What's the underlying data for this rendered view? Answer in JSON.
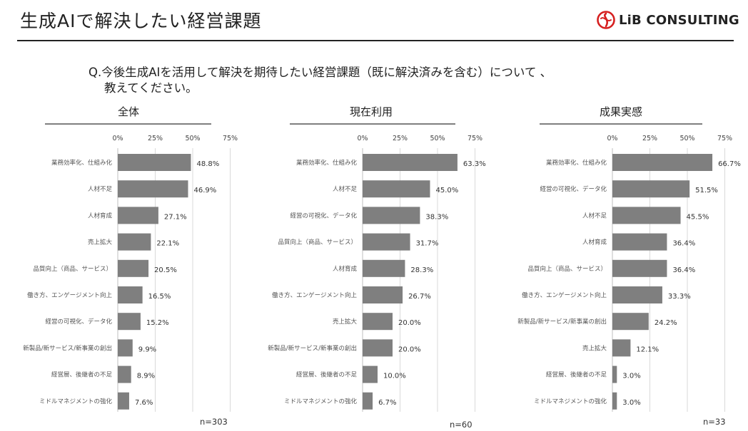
{
  "page": {
    "title": "生成AIで解決したい経営課題"
  },
  "logo": {
    "text": "LiB CONSULTING",
    "brand_color": "#d62020"
  },
  "question": {
    "line1": "Q.今後生成AIを活用して解決を期待したい経営課題（既に解決済みを含む）について 、",
    "line2": "教えてください。"
  },
  "colors": {
    "bar": "#7f7f7f",
    "grid": "#d9d9d9",
    "rule": "#222222"
  },
  "chart_data": [
    {
      "type": "bar",
      "orientation": "horizontal",
      "title": "全体",
      "xlim": [
        0,
        75
      ],
      "ticks": [
        "0%",
        "25%",
        "50%",
        "75%"
      ],
      "categories": [
        "業務効率化、仕組み化",
        "人材不足",
        "人材育成",
        "売上拡大",
        "品質向上（商品、サービス）",
        "働き方、エンゲージメント向上",
        "経営の可視化、データ化",
        "新製品/新サービス/新事業の創出",
        "経営層、後継者の不足",
        "ミドルマネジメントの強化"
      ],
      "values": [
        48.8,
        46.9,
        27.1,
        22.1,
        20.5,
        16.5,
        15.2,
        9.9,
        8.9,
        7.6
      ],
      "labels": [
        "48.8%",
        "46.9%",
        "27.1%",
        "22.1%",
        "20.5%",
        "16.5%",
        "15.2%",
        "9.9%",
        "8.9%",
        "7.6%"
      ],
      "n_label": "n=303"
    },
    {
      "type": "bar",
      "orientation": "horizontal",
      "title": "現在利用",
      "xlim": [
        0,
        75
      ],
      "ticks": [
        "0%",
        "25%",
        "50%",
        "75%"
      ],
      "categories": [
        "業務効率化、仕組み化",
        "人材不足",
        "経営の可視化、データ化",
        "品質向上（商品、サービス）",
        "人材育成",
        "働き方、エンゲージメント向上",
        "売上拡大",
        "新製品/新サービス/新事業の創出",
        "経営層、後継者の不足",
        "ミドルマネジメントの強化"
      ],
      "values": [
        63.3,
        45.0,
        38.3,
        31.7,
        28.3,
        26.7,
        20.0,
        20.0,
        10.0,
        6.7
      ],
      "labels": [
        "63.3%",
        "45.0%",
        "38.3%",
        "31.7%",
        "28.3%",
        "26.7%",
        "20.0%",
        "20.0%",
        "10.0%",
        "6.7%"
      ],
      "n_label": "n=60"
    },
    {
      "type": "bar",
      "orientation": "horizontal",
      "title": "成果実感",
      "xlim": [
        0,
        75
      ],
      "ticks": [
        "0%",
        "25%",
        "50%",
        "75%"
      ],
      "categories": [
        "業務効率化、仕組み化",
        "経営の可視化、データ化",
        "人材不足",
        "人材育成",
        "品質向上（商品、サービス）",
        "働き方、エンゲージメント向上",
        "新製品/新サービス/新事業の創出",
        "売上拡大",
        "経営層、後継者の不足",
        "ミドルマネジメントの強化"
      ],
      "values": [
        66.7,
        51.5,
        45.5,
        36.4,
        36.4,
        33.3,
        24.2,
        12.1,
        3.0,
        3.0
      ],
      "labels": [
        "66.7%",
        "51.5%",
        "45.5%",
        "36.4%",
        "36.4%",
        "33.3%",
        "24.2%",
        "12.1%",
        "3.0%",
        "3.0%"
      ],
      "n_label": "n=33"
    }
  ]
}
